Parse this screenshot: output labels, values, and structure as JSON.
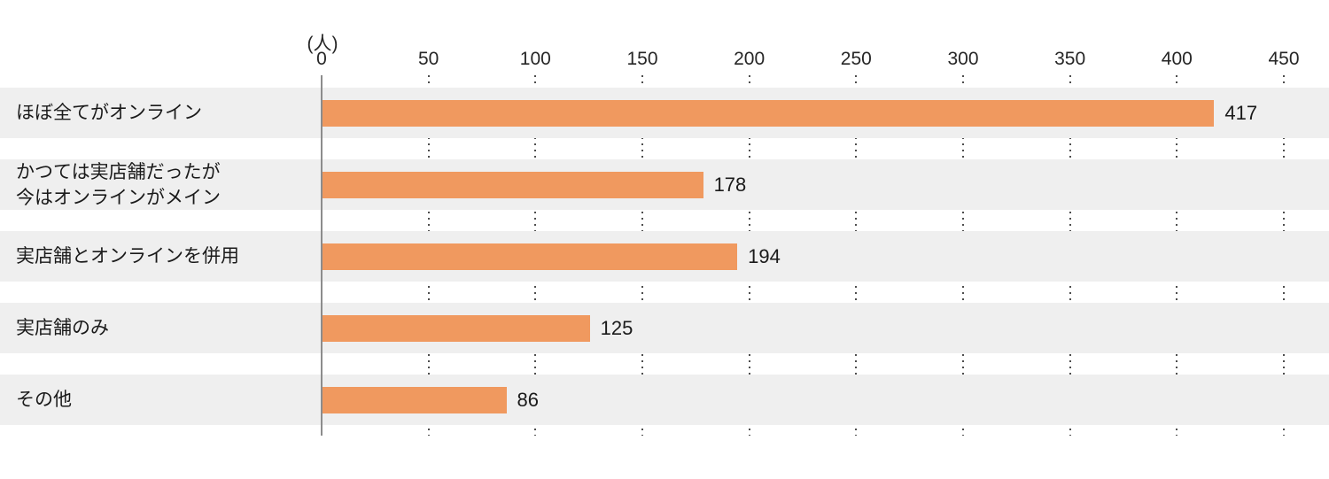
{
  "chart_data": {
    "type": "bar",
    "orientation": "horizontal",
    "title": "",
    "unit_label": "(人)",
    "categories": [
      "ほぼ全てがオンライン",
      "かつては実店舗だったが\n今はオンラインがメイン",
      "実店舗とオンラインを併用",
      "実店舗のみ",
      "その他"
    ],
    "values": [
      417,
      178,
      194,
      125,
      86
    ],
    "x_ticks": [
      0,
      50,
      100,
      150,
      200,
      250,
      300,
      350,
      400,
      450
    ],
    "xlim": [
      0,
      450
    ],
    "legend_position": "none",
    "grid": "dotted-vertical",
    "colors": {
      "bar": "#f0995f",
      "row_band": "#efefef",
      "axis_line": "#8c8c8c",
      "gridline_dots": "#4d4d4d",
      "text": "#1a1a1a"
    }
  }
}
